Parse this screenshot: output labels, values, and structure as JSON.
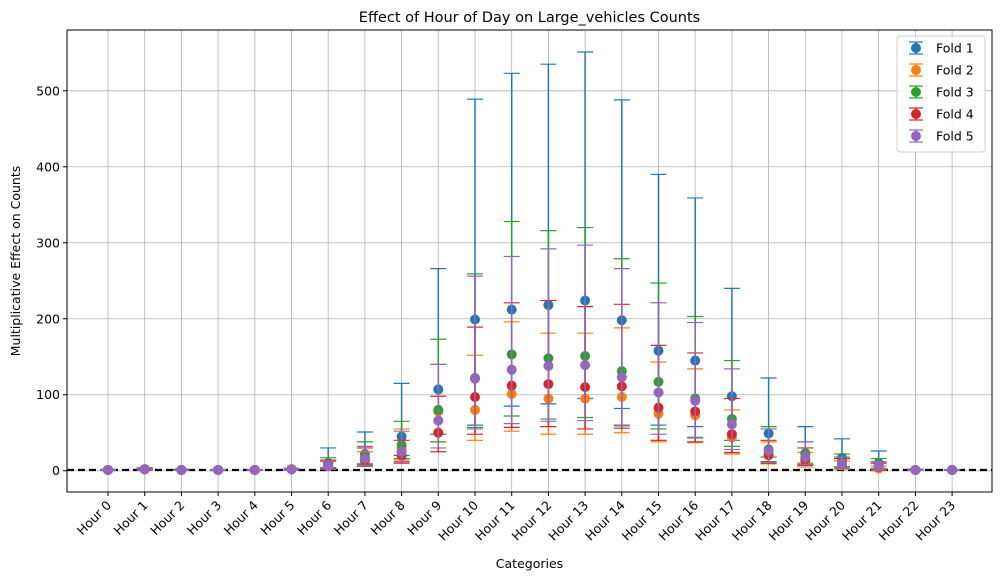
{
  "chart_data": {
    "type": "scatter",
    "title": "Effect of Hour of Day on Large_vehicles Counts",
    "xlabel": "Categories",
    "ylabel": "Multiplicative Effect on Counts",
    "categories": [
      "Hour 0",
      "Hour 1",
      "Hour 2",
      "Hour 3",
      "Hour 4",
      "Hour 5",
      "Hour 6",
      "Hour 7",
      "Hour 8",
      "Hour 9",
      "Hour 10",
      "Hour 11",
      "Hour 12",
      "Hour 13",
      "Hour 14",
      "Hour 15",
      "Hour 16",
      "Hour 17",
      "Hour 18",
      "Hour 19",
      "Hour 20",
      "Hour 21",
      "Hour 22",
      "Hour 23"
    ],
    "ylim": [
      -28,
      580
    ],
    "yticks": [
      0,
      100,
      200,
      300,
      400,
      500
    ],
    "grid": true,
    "legend_position": "top-right",
    "reference_line": {
      "y": 1,
      "style": "dashed",
      "color": "#000000"
    },
    "series": [
      {
        "name": "Fold 1",
        "color": "#1f77b4",
        "values": [
          1,
          2,
          1,
          1,
          1,
          2,
          10,
          22,
          45,
          107,
          199,
          212,
          218,
          224,
          198,
          158,
          145,
          98,
          49,
          23,
          17,
          10,
          1,
          1
        ],
        "lower": [
          0.5,
          1,
          0.5,
          0.5,
          0.5,
          1,
          4,
          9,
          20,
          48,
          60,
          85,
          88,
          95,
          82,
          60,
          58,
          40,
          18,
          8,
          5,
          3,
          0.5,
          0.5
        ],
        "upper": [
          1.5,
          4,
          2,
          1.5,
          1.5,
          3,
          30,
          51,
          115,
          266,
          489,
          523,
          535,
          551,
          488,
          390,
          359,
          240,
          122,
          58,
          42,
          26,
          2,
          1.5
        ]
      },
      {
        "name": "Fold 2",
        "color": "#ff7f0e",
        "values": [
          1,
          2,
          1,
          1,
          1,
          2,
          6,
          13,
          30,
          78,
          80,
          101,
          95,
          95,
          97,
          75,
          73,
          44,
          20,
          13,
          7,
          3,
          1,
          1
        ],
        "lower": [
          0.5,
          1,
          0.5,
          0.5,
          0.5,
          1,
          2,
          6,
          14,
          38,
          40,
          52,
          48,
          48,
          50,
          38,
          37,
          22,
          9,
          5,
          2,
          1,
          0.5,
          0.5
        ],
        "upper": [
          1.5,
          3,
          2,
          1.5,
          1.5,
          3,
          12,
          25,
          55,
          140,
          152,
          196,
          181,
          181,
          188,
          143,
          134,
          80,
          38,
          24,
          13,
          6,
          2,
          1.5
        ]
      },
      {
        "name": "Fold 3",
        "color": "#2ca02c",
        "values": [
          1,
          2,
          1,
          1,
          1,
          2,
          8,
          18,
          34,
          80,
          122,
          153,
          148,
          151,
          131,
          117,
          95,
          68,
          28,
          22,
          12,
          8,
          1,
          1
        ],
        "lower": [
          0.5,
          1,
          0.5,
          0.5,
          0.5,
          1,
          3,
          8,
          16,
          38,
          57,
          72,
          68,
          70,
          60,
          55,
          44,
          32,
          12,
          10,
          5,
          3,
          0.5,
          0.5
        ],
        "upper": [
          1.5,
          3,
          2,
          1.5,
          1.5,
          3,
          17,
          38,
          65,
          173,
          259,
          328,
          316,
          320,
          279,
          247,
          203,
          145,
          58,
          38,
          22,
          16,
          2,
          1.5
        ]
      },
      {
        "name": "Fold 4",
        "color": "#d62728",
        "values": [
          1,
          2,
          1,
          1,
          1,
          2,
          7,
          14,
          20,
          50,
          97,
          112,
          114,
          110,
          111,
          83,
          78,
          48,
          21,
          15,
          8,
          5,
          1,
          1
        ],
        "lower": [
          0.5,
          1,
          0.5,
          0.5,
          0.5,
          1,
          3,
          6,
          10,
          25,
          48,
          57,
          58,
          55,
          56,
          40,
          38,
          24,
          10,
          7,
          3,
          2,
          0.5,
          0.5
        ],
        "upper": [
          1.5,
          3,
          2,
          1.5,
          1.5,
          3,
          14,
          30,
          40,
          98,
          189,
          221,
          224,
          216,
          219,
          165,
          155,
          95,
          40,
          30,
          16,
          10,
          2,
          1.5
        ]
      },
      {
        "name": "Fold 5",
        "color": "#9467bd",
        "values": [
          1,
          2,
          1,
          1,
          1,
          2,
          6,
          16,
          25,
          66,
          121,
          133,
          138,
          139,
          123,
          103,
          92,
          61,
          26,
          18,
          9,
          6,
          1,
          1
        ],
        "lower": [
          0.5,
          1,
          0.5,
          0.5,
          0.5,
          1,
          2,
          7,
          12,
          30,
          55,
          62,
          65,
          66,
          59,
          48,
          43,
          28,
          11,
          8,
          3,
          2,
          0.5,
          0.5
        ],
        "upper": [
          1.5,
          3,
          2,
          1.5,
          1.5,
          3,
          13,
          32,
          52,
          140,
          256,
          282,
          292,
          297,
          266,
          221,
          195,
          134,
          55,
          38,
          18,
          12,
          2,
          1.5
        ]
      }
    ]
  }
}
